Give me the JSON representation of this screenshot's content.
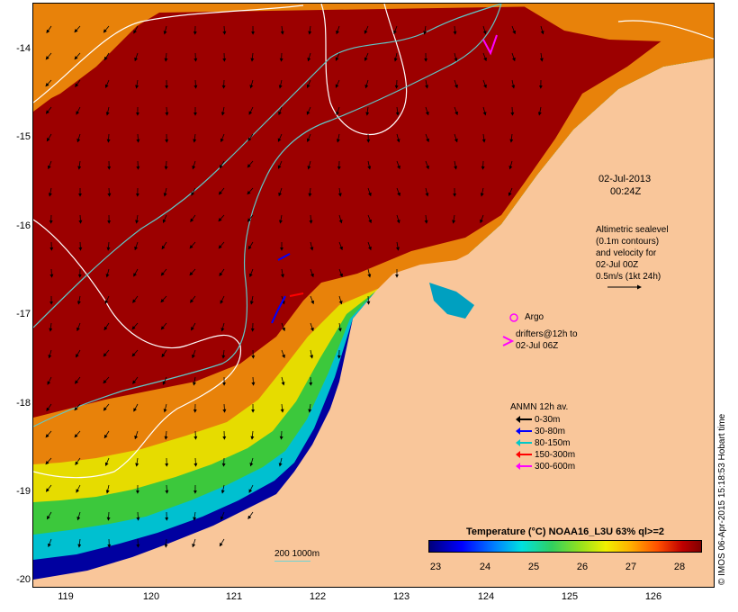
{
  "map": {
    "y_ticks": [
      "-14",
      "-15",
      "-16",
      "-17",
      "-18",
      "-19",
      "-20"
    ],
    "x_ticks": [
      "119",
      "120",
      "121",
      "122",
      "123",
      "124",
      "125",
      "126"
    ],
    "colors": {
      "land": "#F9C69A",
      "warm": "#9C0000",
      "orange": "#E8820A",
      "yellow": "#E6E000",
      "green": "#3CC83C",
      "cyan": "#00C8C8",
      "blue": "#0000A0",
      "contour_white": "#FFFFFF",
      "isobath": "#5FC8C8"
    }
  },
  "timestamp": {
    "date": "02-Jul-2013",
    "time": "00:24Z"
  },
  "altimetry_note": {
    "line1": "Altimetric sealevel",
    "line2": "(0.1m contours)",
    "line3": "and velocity for",
    "line4": "02-Jul 00Z",
    "line5": "0.5m/s (1kt 24h)"
  },
  "argo_label": "Argo",
  "drifters_note": {
    "line1": "drifters@12h to",
    "line2": "02-Jul 06Z"
  },
  "anmn_legend": {
    "title": "ANMN 12h av.",
    "items": [
      {
        "label": "0-30m",
        "color": "#000000"
      },
      {
        "label": "30-80m",
        "color": "#0000FF"
      },
      {
        "label": "80-150m",
        "color": "#00C8C8"
      },
      {
        "label": "150-300m",
        "color": "#FF0000"
      },
      {
        "label": "300-600m",
        "color": "#FF00FF"
      }
    ]
  },
  "colorbar": {
    "title": "Temperature (°C) NOAA16_L3U 63% ql>=2",
    "ticks": [
      "23",
      "24",
      "25",
      "26",
      "27",
      "28"
    ]
  },
  "scale_bar": "200  1000m",
  "credit": "© IMOS 06-Apr-2015 15:18:53 Hobart time"
}
